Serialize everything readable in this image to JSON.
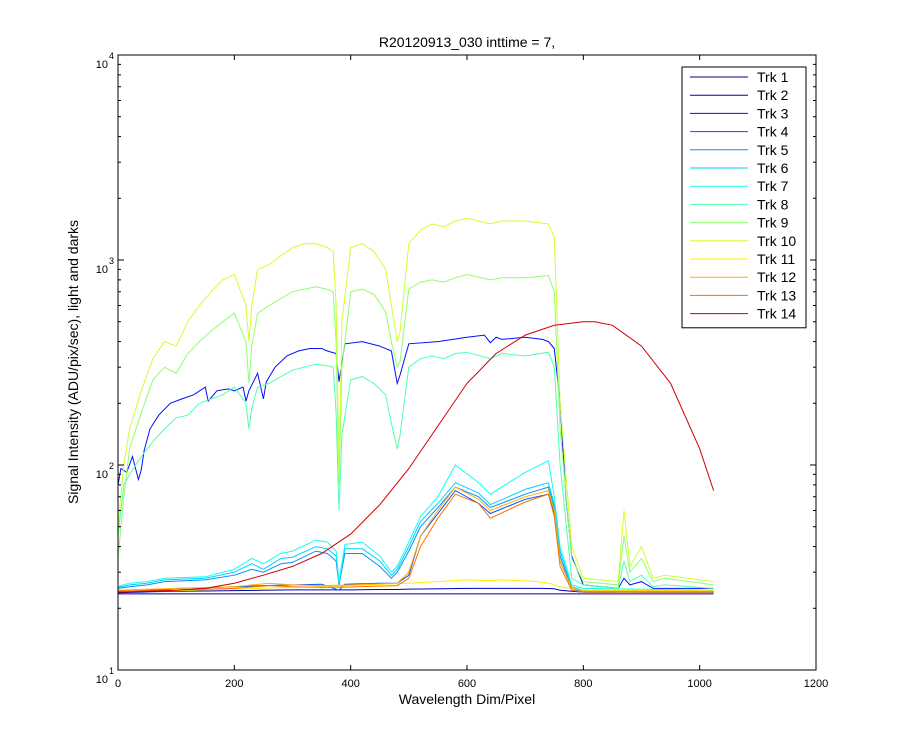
{
  "chart_data": {
    "type": "line",
    "title": "R20120913_030 inttime = 7,",
    "xlabel": "Wavelength Dim/Pixel",
    "ylabel": "Signal Intensity (ADU/pix/sec), light and darks",
    "xlim": [
      0,
      1200
    ],
    "ylim": [
      10,
      10000
    ],
    "yscale": "log",
    "grid": false,
    "legend_position": "top-right",
    "x_ticks": [
      0,
      200,
      400,
      600,
      800,
      1000,
      1200
    ],
    "x_tick_labels": [
      "0",
      "200",
      "400",
      "600",
      "800",
      "1000",
      "1200"
    ],
    "y_ticks": [
      {
        "value": 10,
        "base": "10",
        "exp": "1"
      },
      {
        "value": 100,
        "base": "10",
        "exp": "2"
      },
      {
        "value": 1000,
        "base": "10",
        "exp": "3"
      },
      {
        "value": 10000,
        "base": "10",
        "exp": "4"
      }
    ],
    "series": [
      {
        "name": "Trk 1",
        "color": "#00008F",
        "x": [
          0,
          1024
        ],
        "y": [
          23.5,
          23.5
        ]
      },
      {
        "name": "Trk 2",
        "color": "#0000BF",
        "x": [
          0,
          20,
          40,
          60,
          100,
          150,
          200,
          250,
          300,
          350,
          400,
          450,
          480,
          500,
          560,
          600,
          640,
          660,
          700,
          730,
          750,
          760,
          780,
          800,
          850,
          870,
          900,
          1024
        ],
        "y": [
          23.8,
          23.9,
          24,
          24.1,
          24.2,
          24.3,
          24.4,
          24.5,
          24.6,
          24.6,
          24.6,
          24.7,
          24.7,
          24.8,
          24.9,
          25,
          25,
          25,
          25,
          25,
          24.9,
          24.5,
          24.2,
          24,
          24,
          24.1,
          24,
          24
        ]
      },
      {
        "name": "Trk 3",
        "color": "#0010FF",
        "x": [
          0,
          5,
          15,
          25,
          35,
          40,
          45,
          55,
          70,
          90,
          110,
          130,
          150,
          155,
          170,
          190,
          200,
          215,
          220,
          225,
          240,
          250,
          255,
          270,
          290,
          310,
          330,
          350,
          360,
          375,
          380,
          390,
          420,
          450,
          470,
          480,
          485,
          500,
          550,
          600,
          630,
          640,
          650,
          660,
          700,
          730,
          740,
          750,
          760,
          770,
          780,
          800,
          860,
          870,
          880,
          900,
          920,
          1024
        ],
        "y": [
          80,
          96,
          92,
          110,
          85,
          95,
          118,
          150,
          175,
          200,
          210,
          220,
          240,
          205,
          230,
          235,
          230,
          240,
          205,
          230,
          280,
          210,
          255,
          300,
          340,
          360,
          370,
          370,
          360,
          350,
          255,
          390,
          400,
          380,
          360,
          250,
          275,
          390,
          400,
          420,
          430,
          395,
          420,
          410,
          420,
          410,
          400,
          370,
          200,
          70,
          36,
          26,
          25,
          28,
          26,
          27,
          25,
          25
        ]
      },
      {
        "name": "Trk 4",
        "color": "#0050FF",
        "x": [
          0,
          50,
          100,
          150,
          200,
          250,
          300,
          350,
          380,
          390,
          450,
          480,
          500,
          520,
          550,
          580,
          620,
          640,
          700,
          740,
          750,
          760,
          780,
          800,
          1024
        ],
        "y": [
          24,
          24.5,
          25,
          25.2,
          25.5,
          25.8,
          26,
          26.2,
          24.5,
          26.2,
          26.5,
          26.5,
          29,
          45,
          58,
          75,
          65,
          58,
          68,
          72,
          58,
          34,
          25,
          24,
          24
        ]
      },
      {
        "name": "Trk 5",
        "color": "#0090FF",
        "x": [
          0,
          20,
          50,
          80,
          150,
          200,
          230,
          250,
          280,
          300,
          340,
          360,
          375,
          380,
          390,
          420,
          450,
          470,
          480,
          500,
          520,
          550,
          580,
          620,
          640,
          700,
          740,
          750,
          760,
          780,
          800,
          1024
        ],
        "y": [
          25,
          25.5,
          26,
          27,
          27.5,
          29,
          31,
          30,
          33,
          33.5,
          38,
          37,
          34,
          26,
          37,
          37,
          32,
          28,
          30,
          38,
          50,
          62,
          78,
          70,
          62,
          72,
          78,
          62,
          36,
          25,
          24,
          24
        ]
      },
      {
        "name": "Trk 6",
        "color": "#00CFFF",
        "x": [
          0,
          20,
          50,
          80,
          150,
          200,
          230,
          250,
          280,
          300,
          340,
          360,
          375,
          380,
          390,
          420,
          450,
          470,
          480,
          500,
          520,
          550,
          580,
          620,
          640,
          700,
          740,
          750,
          760,
          780,
          800,
          1024
        ],
        "y": [
          25.3,
          26,
          26.5,
          27.5,
          28,
          30,
          33,
          31,
          35,
          35.5,
          40,
          39,
          36,
          26.5,
          39,
          39,
          34,
          29,
          31,
          40,
          53,
          65,
          82,
          73,
          64,
          76,
          82,
          64,
          38,
          25.5,
          24.5,
          24.2
        ]
      },
      {
        "name": "Trk 7",
        "color": "#10FFEF",
        "x": [
          0,
          20,
          50,
          80,
          150,
          200,
          230,
          250,
          280,
          300,
          340,
          360,
          375,
          380,
          390,
          420,
          450,
          470,
          480,
          500,
          520,
          550,
          580,
          620,
          640,
          700,
          740,
          750,
          760,
          780,
          800,
          1024
        ],
        "y": [
          25.6,
          26.5,
          27,
          28,
          28.5,
          31,
          35,
          33,
          37,
          38,
          43,
          42,
          38,
          27,
          41,
          42,
          36,
          30,
          32,
          42,
          56,
          70,
          100,
          82,
          72,
          92,
          105,
          70,
          40,
          26,
          25,
          24.5
        ]
      },
      {
        "name": "Trk 8",
        "color": "#50FFAF",
        "x": [
          0,
          10,
          20,
          40,
          60,
          80,
          100,
          120,
          140,
          160,
          180,
          200,
          220,
          225,
          230,
          240,
          260,
          280,
          300,
          320,
          340,
          360,
          370,
          375,
          378,
          380,
          385,
          400,
          420,
          440,
          460,
          470,
          480,
          485,
          500,
          520,
          540,
          560,
          580,
          600,
          640,
          660,
          700,
          740,
          750,
          760,
          780,
          800,
          860,
          870,
          880,
          900,
          920,
          940,
          1024
        ],
        "y": [
          45,
          80,
          90,
          110,
          130,
          150,
          170,
          175,
          200,
          210,
          220,
          240,
          200,
          150,
          190,
          240,
          250,
          270,
          290,
          300,
          310,
          305,
          300,
          180,
          90,
          60,
          140,
          260,
          270,
          250,
          220,
          160,
          120,
          140,
          300,
          330,
          340,
          330,
          350,
          355,
          330,
          350,
          340,
          355,
          300,
          100,
          28,
          26,
          25,
          34,
          27,
          29,
          25.5,
          26,
          25
        ]
      },
      {
        "name": "Trk 9",
        "color": "#8FFF70",
        "x": [
          0,
          10,
          20,
          40,
          60,
          80,
          100,
          120,
          140,
          160,
          180,
          200,
          220,
          225,
          230,
          240,
          260,
          280,
          300,
          320,
          340,
          360,
          370,
          375,
          378,
          380,
          385,
          400,
          420,
          440,
          460,
          470,
          480,
          485,
          500,
          520,
          540,
          560,
          580,
          600,
          640,
          660,
          700,
          740,
          750,
          760,
          780,
          800,
          860,
          870,
          880,
          900,
          920,
          940,
          1024
        ],
        "y": [
          35,
          70,
          120,
          180,
          260,
          300,
          280,
          350,
          400,
          450,
          500,
          550,
          400,
          250,
          380,
          550,
          600,
          650,
          700,
          720,
          740,
          720,
          700,
          400,
          150,
          80,
          300,
          700,
          720,
          680,
          560,
          400,
          300,
          320,
          720,
          780,
          800,
          780,
          820,
          850,
          800,
          820,
          820,
          840,
          700,
          150,
          35,
          27,
          26,
          45,
          30,
          35,
          27,
          28,
          26
        ]
      },
      {
        "name": "Trk 10",
        "color": "#CFFF30",
        "x": [
          0,
          10,
          20,
          40,
          60,
          80,
          100,
          120,
          140,
          160,
          180,
          200,
          220,
          225,
          230,
          240,
          260,
          280,
          300,
          320,
          340,
          360,
          370,
          375,
          378,
          380,
          385,
          400,
          420,
          440,
          460,
          470,
          480,
          485,
          500,
          520,
          540,
          560,
          580,
          600,
          640,
          660,
          700,
          740,
          750,
          760,
          780,
          800,
          860,
          870,
          880,
          900,
          920,
          940,
          1024
        ],
        "y": [
          50,
          100,
          150,
          230,
          330,
          400,
          380,
          500,
          600,
          700,
          800,
          850,
          600,
          400,
          600,
          900,
          950,
          1050,
          1150,
          1200,
          1200,
          1150,
          1100,
          600,
          200,
          90,
          500,
          1150,
          1200,
          1100,
          900,
          600,
          400,
          450,
          1200,
          1400,
          1500,
          1450,
          1550,
          1600,
          1500,
          1550,
          1550,
          1500,
          1300,
          200,
          40,
          28,
          27,
          60,
          32,
          40,
          28,
          29,
          27
        ]
      },
      {
        "name": "Trk 11",
        "color": "#FFEF00",
        "x": [
          0,
          100,
          200,
          300,
          400,
          500,
          550,
          600,
          640,
          660,
          700,
          720,
          740,
          750,
          760,
          780,
          800,
          1024
        ],
        "y": [
          24.2,
          24.4,
          24.8,
          25.3,
          25.8,
          26.5,
          27,
          27.5,
          27.3,
          27.5,
          27.2,
          27,
          26.5,
          26,
          25.5,
          25,
          24.5,
          24.4
        ]
      },
      {
        "name": "Trk 12",
        "color": "#FFAF00",
        "x": [
          0,
          100,
          200,
          260,
          300,
          350,
          400,
          480,
          500,
          520,
          550,
          580,
          620,
          640,
          700,
          740,
          750,
          760,
          780,
          800,
          1024
        ],
        "y": [
          24.5,
          25,
          25.5,
          26.5,
          26,
          25.8,
          26,
          26.5,
          30,
          45,
          60,
          78,
          68,
          60,
          70,
          75,
          60,
          34,
          25,
          24.3,
          24.2
        ]
      },
      {
        "name": "Trk 13",
        "color": "#FF6F00",
        "x": [
          0,
          100,
          200,
          260,
          300,
          350,
          400,
          480,
          500,
          520,
          550,
          580,
          620,
          640,
          700,
          740,
          750,
          760,
          780,
          800,
          1024
        ],
        "y": [
          24.3,
          24.6,
          25,
          25.8,
          25.5,
          25.3,
          25.4,
          25.8,
          28,
          40,
          55,
          72,
          65,
          55,
          66,
          72,
          56,
          32,
          24.5,
          24,
          24
        ]
      },
      {
        "name": "Trk 14",
        "color": "#CF0000",
        "x": [
          0,
          50,
          100,
          150,
          200,
          250,
          300,
          350,
          400,
          450,
          500,
          550,
          600,
          650,
          700,
          750,
          800,
          820,
          850,
          900,
          950,
          1000,
          1024
        ],
        "y": [
          24,
          24.2,
          24.5,
          25,
          26.5,
          29,
          32,
          37,
          46,
          64,
          96,
          155,
          250,
          350,
          430,
          480,
          500,
          500,
          480,
          380,
          250,
          120,
          75
        ]
      }
    ]
  }
}
